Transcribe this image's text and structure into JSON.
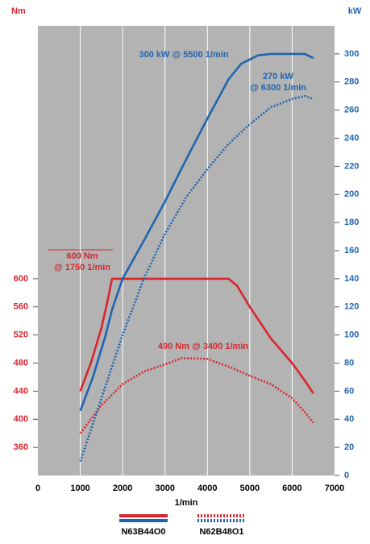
{
  "chart_data": {
    "type": "line",
    "y_label": "Nm",
    "y2_label": "kW",
    "x_label": "1/min",
    "xlim": [
      0,
      7000
    ],
    "xticks": [
      0,
      1000,
      2000,
      3000,
      4000,
      5000,
      6000,
      7000
    ],
    "ylim": [
      320,
      960
    ],
    "yticks": [
      360,
      400,
      440,
      480,
      520,
      560,
      600
    ],
    "y2lim": [
      0,
      320
    ],
    "y2ticks": [
      0,
      20,
      40,
      60,
      80,
      100,
      120,
      140,
      160,
      180,
      200,
      220,
      240,
      260,
      280,
      300
    ],
    "grid": true,
    "y_color": "#d7262e",
    "y2_color": "#1f64b0",
    "series": [
      {
        "name": "N63B44O0",
        "color": "#d7262e",
        "dash": false,
        "x": [
          1000,
          1250,
          1500,
          1650,
          1750,
          4500,
          4700,
          5000,
          5500,
          6000,
          6300,
          6500
        ],
        "values": [
          440,
          480,
          530,
          570,
          600,
          600,
          590,
          560,
          515,
          480,
          455,
          437
        ]
      },
      {
        "name": "N62B48O1",
        "color": "#d7262e",
        "dash": true,
        "x": [
          1000,
          1500,
          2000,
          2500,
          3000,
          3400,
          4000,
          4500,
          5000,
          5500,
          6000,
          6300,
          6500
        ],
        "values": [
          380,
          420,
          450,
          468,
          478,
          487,
          486,
          475,
          462,
          450,
          430,
          410,
          395
        ]
      },
      {
        "name": "N63B44O0",
        "color": "#1f64b0",
        "dash": false,
        "axis": "y2",
        "x": [
          1000,
          1300,
          1600,
          1750,
          2000,
          2500,
          3000,
          3500,
          4000,
          4500,
          4800,
          5200,
          5500,
          6000,
          6300,
          6500
        ],
        "values": [
          46,
          70,
          100,
          118,
          140,
          167,
          195,
          225,
          254,
          282,
          293,
          299,
          300,
          300,
          300,
          297
        ]
      },
      {
        "name": "N62B48O1",
        "color": "#1f64b0",
        "dash": true,
        "axis": "y2",
        "x": [
          1000,
          1500,
          2000,
          2500,
          3000,
          3500,
          4000,
          4500,
          5000,
          5500,
          6000,
          6300,
          6500
        ],
        "values": [
          10,
          55,
          100,
          140,
          172,
          198,
          218,
          236,
          250,
          262,
          268,
          270,
          268
        ]
      }
    ],
    "annotations": [
      {
        "lines": [
          "300 kW @ 5500 1/min"
        ],
        "color": "#1f64b0"
      },
      {
        "lines": [
          "270 kW",
          "@ 6300 1/min"
        ],
        "color": "#1f64b0"
      },
      {
        "lines": [
          "600 Nm",
          "@ 1750 1/min"
        ],
        "color": "#d7262e"
      },
      {
        "lines": [
          "490 Nm @ 3400 1/min"
        ],
        "color": "#d7262e"
      }
    ]
  }
}
